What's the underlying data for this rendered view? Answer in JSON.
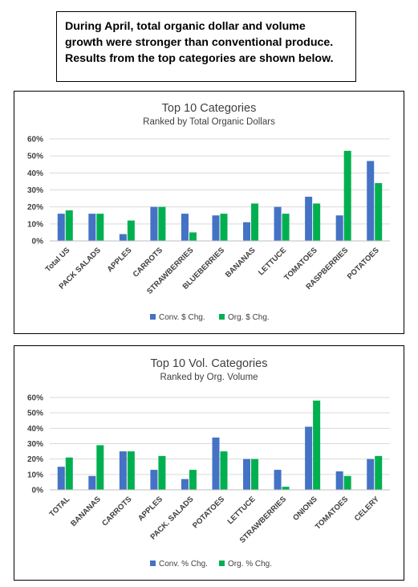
{
  "intro": {
    "lines": [
      "During April, total organic dollar and volume",
      "growth were stronger than conventional produce.",
      "Results from the top categories are shown below."
    ]
  },
  "colors": {
    "conv": "#4472C4",
    "org": "#00B050",
    "grid": "#d9d9d9",
    "text": "#404040"
  },
  "chart_data": [
    {
      "type": "bar",
      "title": "Top 10 Categories",
      "subtitle": "Ranked by Total Organic Dollars",
      "categories": [
        "Total US",
        "PACK SALADS",
        "APPLES",
        "CARROTS",
        "STRAWBERRIES",
        "BLUEBERRIES",
        "BANANAS",
        "LETTUCE",
        "TOMATOES",
        "RASPBERRIES",
        "POTATOES"
      ],
      "series": [
        {
          "name": "Conv. $ Chg.",
          "values": [
            16,
            16,
            4,
            20,
            16,
            15,
            11,
            20,
            26,
            15,
            47
          ]
        },
        {
          "name": "Org. $ Chg.",
          "values": [
            18,
            16,
            12,
            20,
            5,
            16,
            22,
            16,
            22,
            53,
            34
          ]
        }
      ],
      "ylim": [
        0,
        60
      ],
      "yticks": [
        "0%",
        "10%",
        "20%",
        "30%",
        "40%",
        "50%",
        "60%"
      ],
      "grid": true,
      "legend": "bottom"
    },
    {
      "type": "bar",
      "title": "Top 10 Vol. Categories",
      "subtitle": "Ranked by Org. Volume",
      "categories": [
        "TOTAL",
        "BANANAS",
        "CARROTS",
        "APPLES",
        "PACK. SALADS",
        "POTATOES",
        "LETTUCE",
        "STRAWBERRIES",
        "ONIONS",
        "TOMATOES",
        "CELERY"
      ],
      "series": [
        {
          "name": "Conv. % Chg.",
          "values": [
            15,
            9,
            25,
            13,
            7,
            34,
            20,
            13,
            41,
            12,
            20
          ]
        },
        {
          "name": "Org. % Chg.",
          "values": [
            21,
            29,
            25,
            22,
            13,
            25,
            20,
            2,
            58,
            9,
            22
          ]
        }
      ],
      "ylim": [
        0,
        60
      ],
      "yticks": [
        "0%",
        "10%",
        "20%",
        "30%",
        "40%",
        "50%",
        "60%"
      ],
      "grid": true,
      "legend": "bottom"
    }
  ]
}
